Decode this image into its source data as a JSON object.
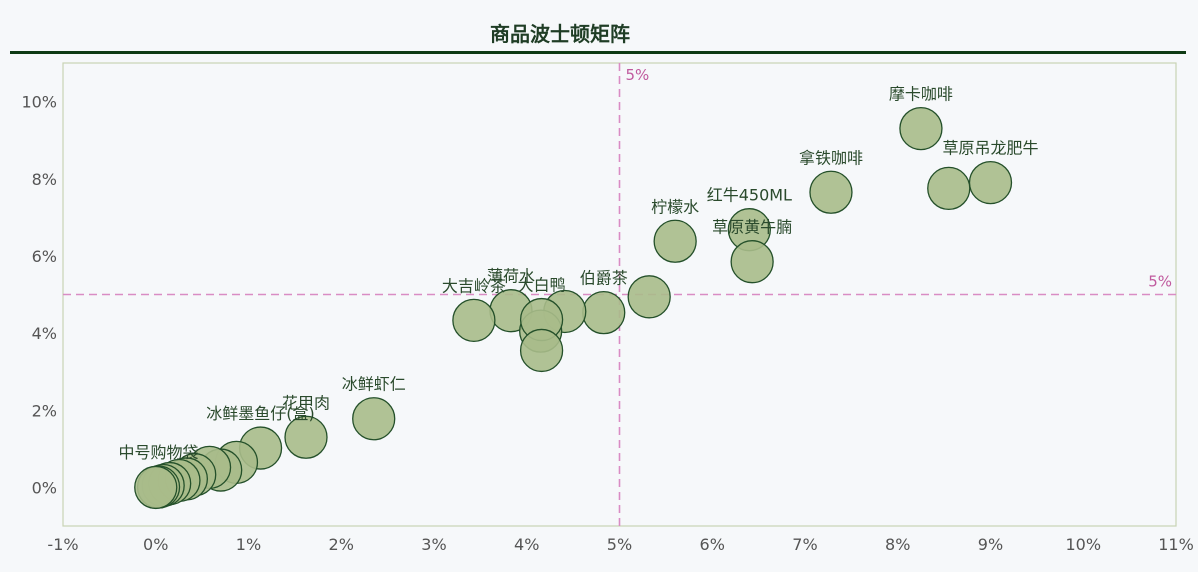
{
  "chart_data": {
    "type": "scatter",
    "title": "商品波士顿矩阵",
    "xlim": [
      -0.01,
      0.11
    ],
    "ylim": [
      -0.01,
      0.11
    ],
    "x_ticks": [
      -0.01,
      0,
      0.01,
      0.02,
      0.03,
      0.04,
      0.05,
      0.06,
      0.07,
      0.08,
      0.09,
      0.1,
      0.11
    ],
    "x_tick_labels": [
      "-1%",
      "0%",
      "1%",
      "2%",
      "3%",
      "4%",
      "5%",
      "6%",
      "7%",
      "8%",
      "9%",
      "10%",
      "11%"
    ],
    "y_ticks": [
      0,
      0.02,
      0.04,
      0.06,
      0.08,
      0.1
    ],
    "y_tick_labels": [
      "0%",
      "2%",
      "4%",
      "6%",
      "8%",
      "10%"
    ],
    "reference_lines": {
      "x": 0.05,
      "x_label": "5%",
      "y": 0.05,
      "y_label": "5%",
      "color": "#d98cc4",
      "label_color": "#c05a9e"
    },
    "marker_fill": "#a8bb8a",
    "marker_edge": "#24502a",
    "points": [
      {
        "x": 0.0825,
        "y": 0.093,
        "label": "摩卡咖啡"
      },
      {
        "x": 0.09,
        "y": 0.079,
        "label": "草原吊龙肥牛"
      },
      {
        "x": 0.0855,
        "y": 0.0775,
        "label": ""
      },
      {
        "x": 0.0728,
        "y": 0.0765,
        "label": "拿铁咖啡"
      },
      {
        "x": 0.064,
        "y": 0.0668,
        "label": "红牛450ML"
      },
      {
        "x": 0.0643,
        "y": 0.0585,
        "label": "草原黄牛腩"
      },
      {
        "x": 0.056,
        "y": 0.0638,
        "label": "柠檬水"
      },
      {
        "x": 0.0532,
        "y": 0.0494,
        "label": ""
      },
      {
        "x": 0.0483,
        "y": 0.0453,
        "label": "伯爵茶"
      },
      {
        "x": 0.0441,
        "y": 0.0456,
        "label": ""
      },
      {
        "x": 0.0383,
        "y": 0.0458,
        "label": "薄荷水"
      },
      {
        "x": 0.0415,
        "y": 0.0405,
        "label": ""
      },
      {
        "x": 0.0416,
        "y": 0.0435,
        "label": "大白鸭"
      },
      {
        "x": 0.0343,
        "y": 0.0433,
        "label": "大吉岭茶"
      },
      {
        "x": 0.0416,
        "y": 0.0355,
        "label": ""
      },
      {
        "x": 0.0235,
        "y": 0.0178,
        "label": "冰鲜虾仁"
      },
      {
        "x": 0.0162,
        "y": 0.013,
        "label": "花甲肉"
      },
      {
        "x": 0.0113,
        "y": 0.0102,
        "label": "冰鲜墨鱼仔(盒)"
      },
      {
        "x": 0.0087,
        "y": 0.0065,
        "label": ""
      },
      {
        "x": 0.007,
        "y": 0.0045,
        "label": ""
      },
      {
        "x": 0.0058,
        "y": 0.0052,
        "label": ""
      },
      {
        "x": 0.0042,
        "y": 0.0033,
        "label": ""
      },
      {
        "x": 0.0033,
        "y": 0.0022,
        "label": ""
      },
      {
        "x": 0.0025,
        "y": 0.0018,
        "label": ""
      },
      {
        "x": 0.0015,
        "y": 0.001,
        "label": ""
      },
      {
        "x": 0.0008,
        "y": 0.0005,
        "label": ""
      },
      {
        "x": 0.0003,
        "y": 0.0001,
        "label": "中号购物袋"
      },
      {
        "x": 0.0,
        "y": 0.0,
        "label": ""
      }
    ]
  }
}
